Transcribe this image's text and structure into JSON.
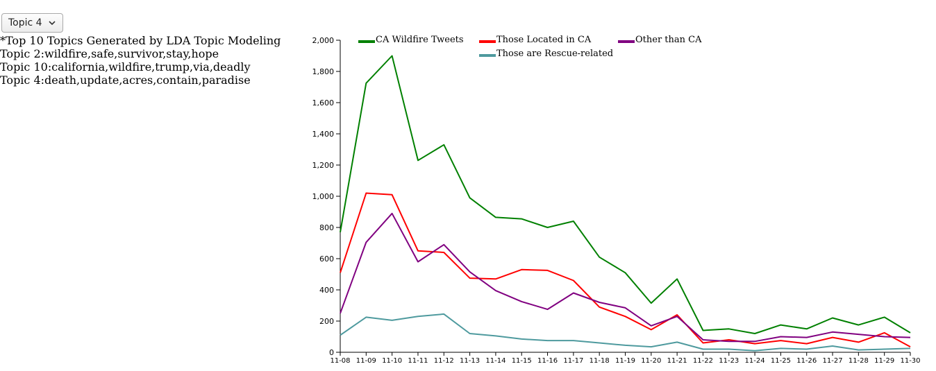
{
  "controls": {
    "topic_select": {
      "selected": "Topic 4"
    }
  },
  "notes": {
    "heading": "*Top 10 Topics Generated by LDA Topic Modeling",
    "lines": [
      "Topic 2:wildfire,safe,survivor,stay,hope",
      "Topic 10:california,wildfire,trump,via,deadly",
      "Topic 4:death,update,acres,contain,paradise"
    ]
  },
  "chart_data": {
    "type": "line",
    "title": "",
    "xlabel": "",
    "ylabel": "",
    "ylim": [
      0,
      2000
    ],
    "y_ticks": [
      0,
      200,
      400,
      600,
      800,
      1000,
      1200,
      1400,
      1600,
      1800,
      2000
    ],
    "y_tick_labels": [
      "0",
      "200",
      "400",
      "600",
      "800",
      "1,000",
      "1,200",
      "1,400",
      "1,600",
      "1,800",
      "2,000"
    ],
    "grid": false,
    "legend_position": "top",
    "categories": [
      "11-08",
      "11-09",
      "11-10",
      "11-11",
      "11-12",
      "11-13",
      "11-14",
      "11-15",
      "11-16",
      "11-17",
      "11-18",
      "11-19",
      "11-20",
      "11-21",
      "11-22",
      "11-23",
      "11-24",
      "11-25",
      "11-26",
      "11-27",
      "11-28",
      "11-29",
      "11-30"
    ],
    "series": [
      {
        "name": "CA Wildfire Tweets",
        "color": "#008000",
        "values": [
          770,
          1725,
          1900,
          1230,
          1330,
          990,
          865,
          855,
          800,
          840,
          610,
          510,
          315,
          470,
          140,
          150,
          120,
          175,
          150,
          220,
          175,
          225,
          125
        ]
      },
      {
        "name": "Those Located in CA",
        "color": "#ff0000",
        "values": [
          510,
          1020,
          1010,
          650,
          640,
          475,
          470,
          530,
          525,
          460,
          290,
          230,
          145,
          240,
          60,
          80,
          55,
          75,
          55,
          95,
          65,
          125,
          35
        ]
      },
      {
        "name": "Other than CA",
        "color": "#800080",
        "values": [
          250,
          705,
          890,
          580,
          690,
          515,
          395,
          325,
          275,
          380,
          320,
          285,
          170,
          230,
          80,
          70,
          70,
          100,
          95,
          130,
          115,
          100,
          95
        ]
      },
      {
        "name": "Those are Rescue-related",
        "color": "#4e9a9e",
        "values": [
          110,
          225,
          205,
          230,
          245,
          120,
          105,
          85,
          75,
          75,
          60,
          45,
          35,
          65,
          20,
          20,
          10,
          25,
          20,
          40,
          15,
          20,
          25
        ]
      }
    ]
  }
}
